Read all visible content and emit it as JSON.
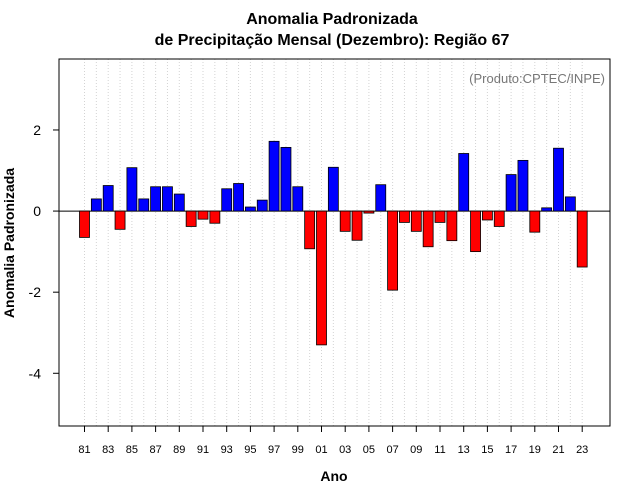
{
  "chart_data": {
    "type": "bar",
    "title": "Anomalia Padronizada",
    "subtitle": "de Precipitação Mensal (Dezembro): Região 67",
    "xlabel": "Ano",
    "ylabel": "Anomalia Padronizada",
    "annotation": "(Produto:CPTEC/INPE)",
    "ylim": [
      -5.3,
      3.75
    ],
    "yticks": [
      -4,
      -2,
      0,
      2
    ],
    "grid": "vertical-dotted",
    "legend": "none",
    "years": [
      "81",
      "82",
      "83",
      "84",
      "85",
      "86",
      "87",
      "88",
      "89",
      "90",
      "91",
      "92",
      "93",
      "94",
      "95",
      "96",
      "97",
      "98",
      "99",
      "00",
      "01",
      "02",
      "03",
      "04",
      "05",
      "06",
      "07",
      "08",
      "09",
      "10",
      "11",
      "12",
      "13",
      "14",
      "15",
      "16",
      "17",
      "18",
      "19",
      "20",
      "21",
      "22",
      "23"
    ],
    "xtick_labels": [
      "81",
      "83",
      "85",
      "87",
      "89",
      "91",
      "93",
      "95",
      "97",
      "99",
      "01",
      "03",
      "05",
      "07",
      "09",
      "11",
      "13",
      "15",
      "17",
      "19",
      "21",
      "23"
    ],
    "values": [
      -0.65,
      0.3,
      0.63,
      -0.45,
      1.07,
      0.3,
      0.6,
      0.6,
      0.42,
      -0.38,
      -0.2,
      -0.3,
      0.55,
      0.68,
      0.1,
      0.27,
      1.72,
      1.57,
      0.6,
      -0.93,
      -3.3,
      1.08,
      -0.5,
      -0.72,
      -0.05,
      0.65,
      -1.95,
      -0.28,
      -0.5,
      -0.88,
      -0.28,
      -0.73,
      1.42,
      -1.0,
      -0.22,
      -0.38,
      0.9,
      1.25,
      -0.52,
      0.08,
      1.55,
      0.35,
      -1.38
    ],
    "colors": {
      "positive": "#0000ff",
      "negative": "#ff0000",
      "zero_line": "#000000",
      "grid": "#d3d3d3"
    }
  }
}
